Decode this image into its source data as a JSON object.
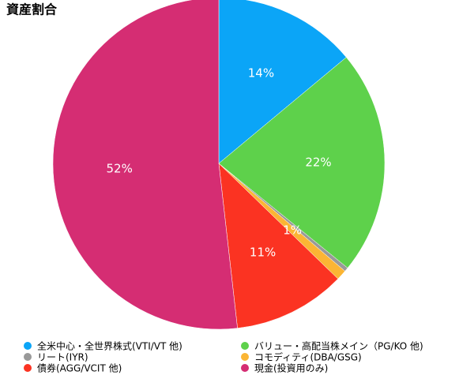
{
  "chart_data": {
    "type": "pie",
    "title": "資産割合",
    "categories": [
      "全米中心・全世界株式(VTI/VT 他)",
      "バリュー・高配当株メイン（PG/KO 他)",
      "リート(IYR)",
      "コモディティ(DBA/GSG)",
      "債券(AGG/VCIT 他)",
      "現金(投資用のみ)"
    ],
    "values": [
      14,
      22,
      0.4,
      1,
      11,
      52
    ],
    "value_labels": [
      "14%",
      "22%",
      null,
      "1%",
      "11%",
      "52%"
    ],
    "colors": [
      "#0ba5f7",
      "#5ed14b",
      "#999999",
      "#fbb534",
      "#fb3322",
      "#d52d73"
    ]
  }
}
